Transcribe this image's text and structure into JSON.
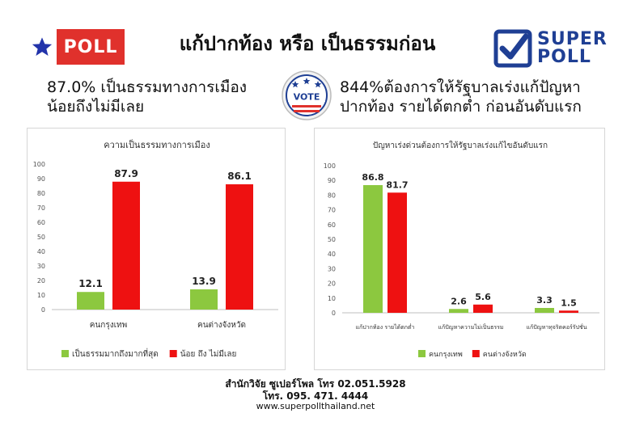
{
  "header": {
    "left_logo_text": "POLL",
    "title": "แก้ปากท้อง หรือ เป็นธรรมก่อน",
    "right_logo_line1": "SUPER",
    "right_logo_line2": "POLL"
  },
  "subtitles": {
    "left_line1": "87.0% เป็นธรรมทางการเมือง",
    "left_line2": "น้อยถึงไม่มีเลย",
    "right_line1": "844%ต้องการให้รัฐบาลเร่งแก้ปัญหา",
    "right_line2": "ปากท้อง รายได้ตกต่ำ ก่อนอันดับแรก",
    "vote_badge": "VOTE"
  },
  "colors": {
    "green": "#8cc83f",
    "red": "#ee1111",
    "logo_red": "#e0312c",
    "logo_blue": "#1f3f94"
  },
  "chart_data": [
    {
      "type": "bar",
      "title": "ความเป็นธรรมทางการเมือง",
      "categories": [
        "คนกรุงเทพ",
        "คนต่างจังหวัด"
      ],
      "series": [
        {
          "name": "เป็นธรรมมากถึงมากที่สุด",
          "values": [
            12.1,
            13.9
          ],
          "color": "#8cc83f"
        },
        {
          "name": "น้อย ถึง ไม่มีเลย",
          "values": [
            87.9,
            86.1
          ],
          "color": "#ee1111"
        }
      ],
      "ylim": [
        0,
        100
      ],
      "yticks": [
        0,
        10,
        20,
        30,
        40,
        50,
        60,
        70,
        80,
        90,
        100
      ],
      "grid": false,
      "legend_position": "bottom"
    },
    {
      "type": "bar",
      "title": "ปัญหาเร่งด่วนต้องการให้รัฐบาลเร่งแก้ไขอันดับแรก",
      "categories": [
        "แก้ปากท้อง รายได้ตกต่ำ",
        "แก้ปัญหาความไม่เป็นธรรม",
        "แก้ปัญหาทุจริตคอร์รัปชั่น"
      ],
      "series": [
        {
          "name": "คนกรุงเทพ",
          "values": [
            86.8,
            2.6,
            3.3
          ],
          "color": "#8cc83f"
        },
        {
          "name": "คนต่างจังหวัด",
          "values": [
            81.7,
            5.6,
            1.5
          ],
          "color": "#ee1111"
        }
      ],
      "ylim": [
        0,
        100
      ],
      "yticks": [
        0,
        10,
        20,
        30,
        40,
        50,
        60,
        70,
        80,
        90,
        100
      ],
      "grid": false,
      "legend_position": "bottom"
    }
  ],
  "footer": {
    "line1": "สำนักวิจัย ซูเปอร์โพล โทร 02.051.5928",
    "line2": "โทร. 095. 471. 4444",
    "line3": "www.superpollthailand.net"
  }
}
